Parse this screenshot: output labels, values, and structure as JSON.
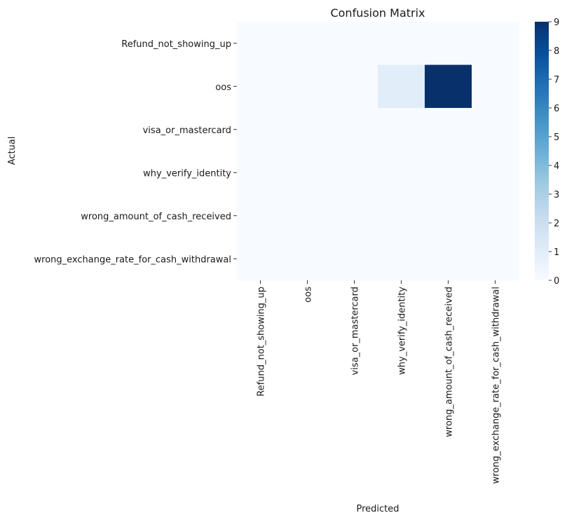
{
  "chart_data": {
    "type": "heatmap",
    "title": "Confusion Matrix",
    "xlabel": "Predicted",
    "ylabel": "Actual",
    "x_categories": [
      "Refund_not_showing_up",
      "oos",
      "visa_or_mastercard",
      "why_verify_identity",
      "wrong_amount_of_cash_received",
      "wrong_exchange_rate_for_cash_withdrawal"
    ],
    "y_categories": [
      "Refund_not_showing_up",
      "oos",
      "visa_or_mastercard",
      "why_verify_identity",
      "wrong_amount_of_cash_received",
      "wrong_exchange_rate_for_cash_withdrawal"
    ],
    "values": [
      [
        0,
        0,
        0,
        0,
        0,
        0
      ],
      [
        0,
        0,
        0,
        1,
        9,
        0
      ],
      [
        0,
        0,
        0,
        0,
        0,
        0
      ],
      [
        0,
        0,
        0,
        0,
        0,
        0
      ],
      [
        0,
        0,
        0,
        0,
        0,
        0
      ],
      [
        0,
        0,
        0,
        0,
        0,
        0
      ]
    ],
    "colorscale": "Blues",
    "color_low": "#f7fbff",
    "color_high": "#08306b",
    "vmin": 0,
    "vmax": 9,
    "colorbar_ticks": [
      0,
      1,
      2,
      3,
      4,
      5,
      6,
      7,
      8,
      9
    ],
    "colorbar_tick_labels": [
      "0",
      "1",
      "2",
      "3",
      "4",
      "5",
      "6",
      "7",
      "8",
      "9"
    ]
  }
}
